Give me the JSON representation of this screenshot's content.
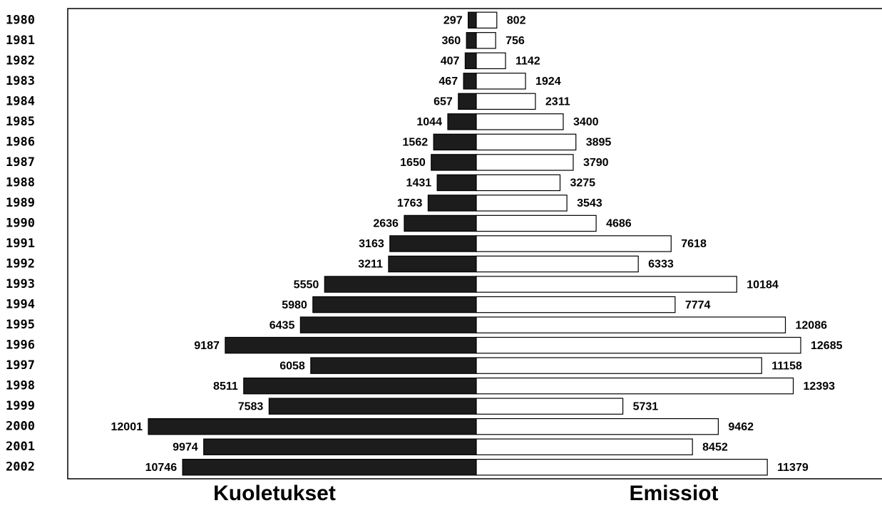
{
  "chart_data": {
    "type": "butterfly",
    "categories": [
      "1980",
      "1981",
      "1982",
      "1983",
      "1984",
      "1985",
      "1986",
      "1987",
      "1988",
      "1989",
      "1990",
      "1991",
      "1992",
      "1993",
      "1994",
      "1995",
      "1996",
      "1997",
      "1998",
      "1999",
      "2000",
      "2001",
      "2002"
    ],
    "series": [
      {
        "name": "Kuoletukset",
        "color": "#1c1c1c",
        "values": [
          297,
          360,
          407,
          467,
          657,
          1044,
          1562,
          1650,
          1431,
          1763,
          2636,
          3163,
          3211,
          5550,
          5980,
          6435,
          9187,
          6058,
          8511,
          7583,
          12001,
          9974,
          10746
        ]
      },
      {
        "name": "Emissiot",
        "color": "#ffffff",
        "values": [
          802,
          756,
          1142,
          1924,
          2311,
          3400,
          3895,
          3790,
          3275,
          3543,
          4686,
          7618,
          6333,
          10184,
          7774,
          12086,
          12685,
          11158,
          12393,
          5731,
          9462,
          8452,
          11379
        ]
      }
    ]
  }
}
